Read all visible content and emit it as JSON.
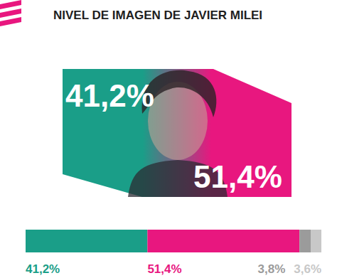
{
  "chart_data": {
    "type": "bar",
    "title": "NIVEL DE IMAGEN DE JAVIER MILEI",
    "orientation": "horizontal",
    "stacked": true,
    "data_labels": true,
    "tick_labels": false,
    "values": [
      41.2,
      51.4,
      3.8,
      3.6
    ],
    "value_labels": [
      "41,2%",
      "51,4%",
      "3,8%",
      "3,6%"
    ],
    "colors": [
      "#1a9e88",
      "#e8177f",
      "#9b9b9b",
      "#c8c8c8"
    ],
    "xlim": [
      0,
      100
    ]
  }
}
